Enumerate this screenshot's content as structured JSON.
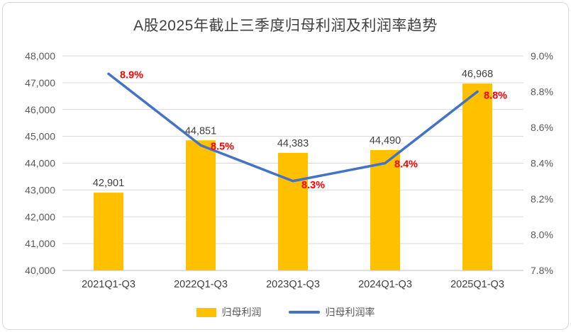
{
  "chart_data": {
    "type": "combo",
    "title": "A股2025年截止三季度归母利润及利润率趋势",
    "categories": [
      "2021Q1-Q3",
      "2022Q1-Q3",
      "2023Q1-Q3",
      "2024Q1-Q3",
      "2025Q1-Q3"
    ],
    "series": [
      {
        "name": "归母利润",
        "type": "bar",
        "axis": "left",
        "values": [
          42901,
          44851,
          44383,
          44490,
          46968
        ],
        "labels": [
          "42,901",
          "44,851",
          "44,383",
          "44,490",
          "46,968"
        ],
        "color": "#FFC000",
        "label_color": "#404040"
      },
      {
        "name": "归母利润率",
        "type": "line",
        "axis": "right",
        "values": [
          8.9,
          8.5,
          8.3,
          8.4,
          8.8
        ],
        "labels": [
          "8.9%",
          "8.5%",
          "8.3%",
          "8.4%",
          "8.8%"
        ],
        "color": "#4472C4",
        "label_color": "#FF0000"
      }
    ],
    "left_axis": {
      "min": 40000,
      "max": 48000,
      "step": 1000,
      "tick_labels": [
        "40,000",
        "41,000",
        "42,000",
        "43,000",
        "44,000",
        "45,000",
        "46,000",
        "47,000",
        "48,000"
      ]
    },
    "right_axis": {
      "min": 7.8,
      "max": 9.0,
      "step": 0.2,
      "tick_labels": [
        "7.8%",
        "8.0%",
        "8.2%",
        "8.4%",
        "8.6%",
        "8.8%",
        "9.0%"
      ]
    },
    "grid": true,
    "legend_position": "bottom",
    "colors": {
      "gridline": "#D9D9D9",
      "axis_line": "#BFBFBF",
      "tick_text": "#595959",
      "category_text": "#404040",
      "title_text": "#404040"
    }
  }
}
